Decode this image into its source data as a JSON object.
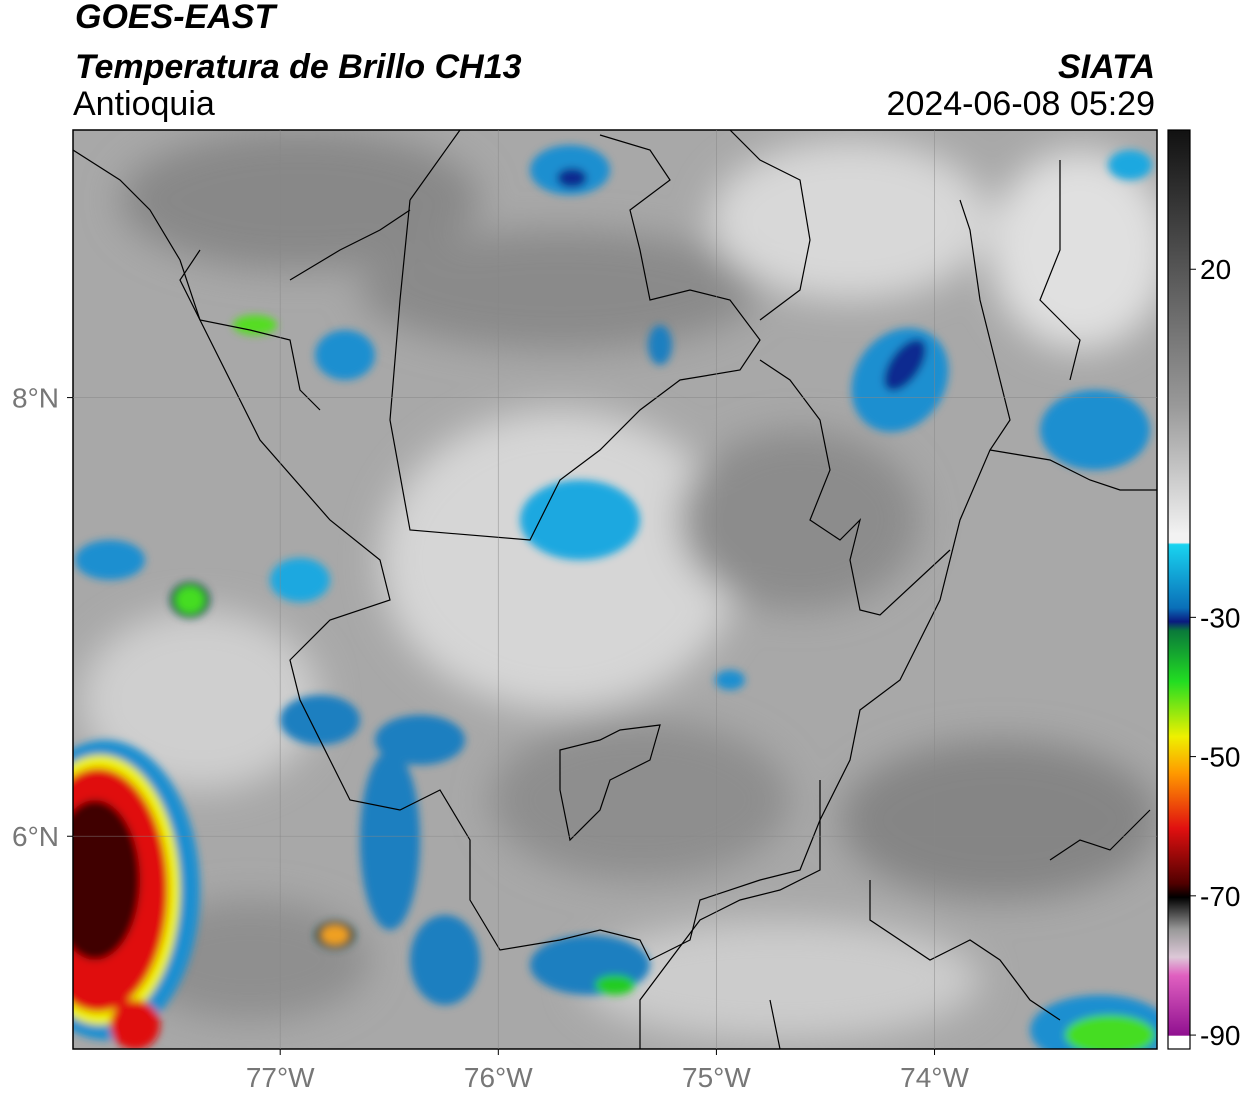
{
  "header": {
    "title": "GOES-EAST",
    "subtitle": "Temperatura de Brillo CH13",
    "region": "Antioquia",
    "source": "SIATA",
    "timestamp": "2024-06-08 05:29"
  },
  "map": {
    "xlim": [
      -77.95,
      -72.98
    ],
    "ylim": [
      5.03,
      9.22
    ],
    "xticks": [
      {
        "value": -77,
        "label": "77°W"
      },
      {
        "value": -76,
        "label": "76°W"
      },
      {
        "value": -75,
        "label": "75°W"
      },
      {
        "value": -74,
        "label": "74°W"
      }
    ],
    "yticks": [
      {
        "value": 8,
        "label": "8°N"
      },
      {
        "value": 6,
        "label": "6°N"
      }
    ]
  },
  "colorbar": {
    "clim": [
      -92,
      40
    ],
    "ticks": [
      20,
      -30,
      -50,
      -70,
      -90
    ]
  }
}
